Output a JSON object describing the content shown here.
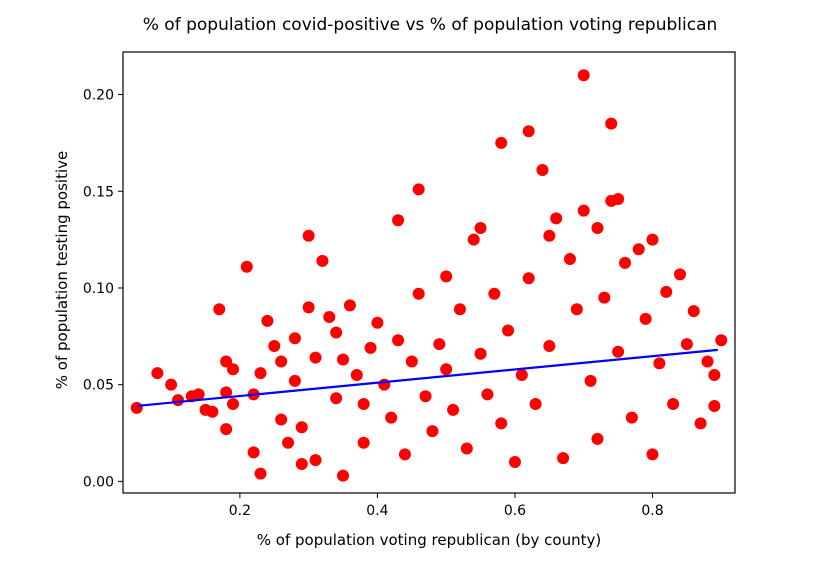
{
  "chart_data": {
    "type": "scatter",
    "title": "% of population covid-positive vs % of population voting republican",
    "xlabel": "% of population voting republican (by county)",
    "ylabel": "% of population testing positive",
    "xlim": [
      0.03,
      0.92
    ],
    "ylim": [
      -0.006,
      0.222
    ],
    "x_ticks": [
      0.2,
      0.4,
      0.6,
      0.8
    ],
    "x_tick_labels": [
      "0.2",
      "0.4",
      "0.6",
      "0.8"
    ],
    "y_ticks": [
      0.0,
      0.05,
      0.1,
      0.15,
      0.2
    ],
    "y_tick_labels": [
      "0.00",
      "0.05",
      "0.10",
      "0.15",
      "0.20"
    ],
    "grid": false,
    "colors": {
      "points": "#ff0000",
      "fit_line": "#0000ff"
    },
    "series": [
      {
        "type": "scatter",
        "points": [
          [
            0.05,
            0.038
          ],
          [
            0.08,
            0.056
          ],
          [
            0.1,
            0.05
          ],
          [
            0.11,
            0.042
          ],
          [
            0.13,
            0.044
          ],
          [
            0.14,
            0.045
          ],
          [
            0.15,
            0.037
          ],
          [
            0.16,
            0.036
          ],
          [
            0.17,
            0.089
          ],
          [
            0.18,
            0.062
          ],
          [
            0.18,
            0.046
          ],
          [
            0.19,
            0.04
          ],
          [
            0.18,
            0.027
          ],
          [
            0.19,
            0.058
          ],
          [
            0.21,
            0.111
          ],
          [
            0.22,
            0.015
          ],
          [
            0.22,
            0.045
          ],
          [
            0.23,
            0.056
          ],
          [
            0.23,
            0.004
          ],
          [
            0.24,
            0.083
          ],
          [
            0.25,
            0.07
          ],
          [
            0.26,
            0.062
          ],
          [
            0.26,
            0.032
          ],
          [
            0.27,
            0.02
          ],
          [
            0.28,
            0.074
          ],
          [
            0.28,
            0.052
          ],
          [
            0.29,
            0.009
          ],
          [
            0.29,
            0.028
          ],
          [
            0.3,
            0.127
          ],
          [
            0.3,
            0.09
          ],
          [
            0.31,
            0.064
          ],
          [
            0.31,
            0.011
          ],
          [
            0.32,
            0.114
          ],
          [
            0.33,
            0.085
          ],
          [
            0.34,
            0.077
          ],
          [
            0.34,
            0.043
          ],
          [
            0.35,
            0.003
          ],
          [
            0.35,
            0.063
          ],
          [
            0.36,
            0.091
          ],
          [
            0.37,
            0.055
          ],
          [
            0.38,
            0.04
          ],
          [
            0.38,
            0.02
          ],
          [
            0.39,
            0.069
          ],
          [
            0.4,
            0.082
          ],
          [
            0.41,
            0.05
          ],
          [
            0.42,
            0.033
          ],
          [
            0.43,
            0.135
          ],
          [
            0.43,
            0.073
          ],
          [
            0.44,
            0.014
          ],
          [
            0.45,
            0.062
          ],
          [
            0.46,
            0.151
          ],
          [
            0.46,
            0.097
          ],
          [
            0.47,
            0.044
          ],
          [
            0.48,
            0.026
          ],
          [
            0.49,
            0.071
          ],
          [
            0.5,
            0.106
          ],
          [
            0.5,
            0.058
          ],
          [
            0.51,
            0.037
          ],
          [
            0.52,
            0.089
          ],
          [
            0.53,
            0.017
          ],
          [
            0.54,
            0.125
          ],
          [
            0.55,
            0.131
          ],
          [
            0.55,
            0.066
          ],
          [
            0.56,
            0.045
          ],
          [
            0.57,
            0.097
          ],
          [
            0.58,
            0.175
          ],
          [
            0.58,
            0.03
          ],
          [
            0.59,
            0.078
          ],
          [
            0.6,
            0.01
          ],
          [
            0.61,
            0.055
          ],
          [
            0.62,
            0.181
          ],
          [
            0.62,
            0.105
          ],
          [
            0.63,
            0.04
          ],
          [
            0.64,
            0.161
          ],
          [
            0.65,
            0.127
          ],
          [
            0.65,
            0.07
          ],
          [
            0.66,
            0.136
          ],
          [
            0.67,
            0.012
          ],
          [
            0.68,
            0.115
          ],
          [
            0.69,
            0.089
          ],
          [
            0.7,
            0.21
          ],
          [
            0.7,
            0.14
          ],
          [
            0.71,
            0.052
          ],
          [
            0.72,
            0.131
          ],
          [
            0.72,
            0.022
          ],
          [
            0.73,
            0.095
          ],
          [
            0.74,
            0.185
          ],
          [
            0.74,
            0.145
          ],
          [
            0.75,
            0.146
          ],
          [
            0.75,
            0.067
          ],
          [
            0.76,
            0.113
          ],
          [
            0.77,
            0.033
          ],
          [
            0.78,
            0.12
          ],
          [
            0.79,
            0.084
          ],
          [
            0.8,
            0.014
          ],
          [
            0.8,
            0.125
          ],
          [
            0.81,
            0.061
          ],
          [
            0.82,
            0.098
          ],
          [
            0.83,
            0.04
          ],
          [
            0.84,
            0.107
          ],
          [
            0.85,
            0.071
          ],
          [
            0.86,
            0.088
          ],
          [
            0.87,
            0.03
          ],
          [
            0.88,
            0.062
          ],
          [
            0.89,
            0.055
          ],
          [
            0.89,
            0.039
          ],
          [
            0.9,
            0.073
          ]
        ]
      },
      {
        "type": "line",
        "x": [
          0.05,
          0.895
        ],
        "y": [
          0.039,
          0.068
        ]
      }
    ]
  }
}
